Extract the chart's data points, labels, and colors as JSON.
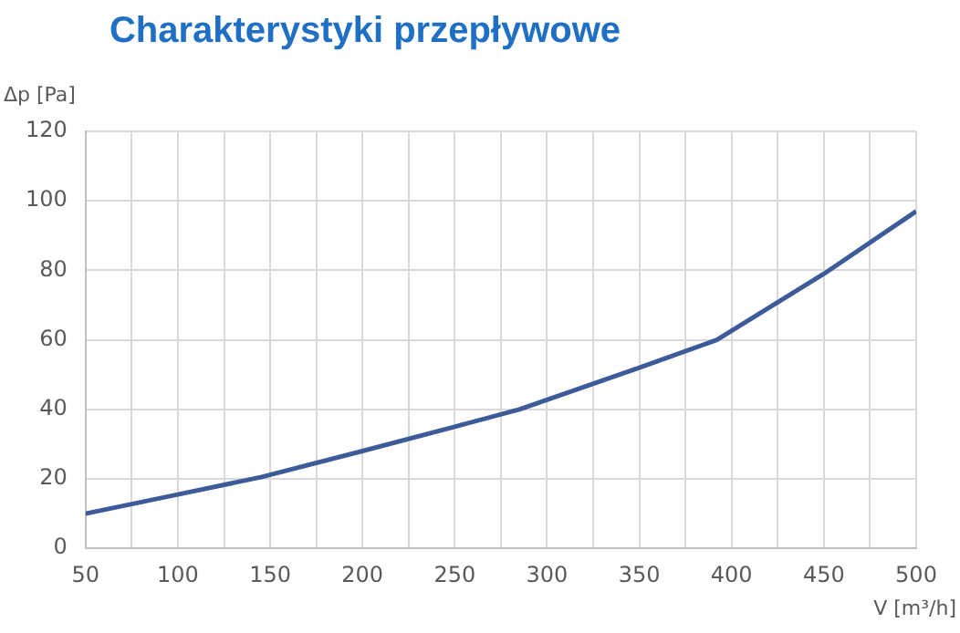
{
  "chart_data": {
    "type": "line",
    "title": "Charakterystyki przepływowe",
    "xlabel": "V [m³/h]",
    "ylabel": "Δp [Pa]",
    "x": [
      50,
      100,
      145,
      200,
      250,
      285,
      350,
      392,
      450,
      500
    ],
    "series": [
      {
        "color": "#3d5a99",
        "values": [
          10,
          15.5,
          20.5,
          28,
          35,
          40,
          52,
          60,
          79,
          97
        ]
      }
    ],
    "xlim": [
      50,
      500
    ],
    "xticks": [
      50,
      {
        "value": 75,
        "label": null
      },
      100,
      {
        "value": 125,
        "label": null
      },
      150,
      {
        "value": 175,
        "label": null
      },
      200,
      {
        "value": 225,
        "label": null
      },
      250,
      {
        "value": 275,
        "label": null
      },
      300,
      {
        "value": 325,
        "label": null
      },
      350,
      {
        "value": 375,
        "label": null
      },
      400,
      {
        "value": 425,
        "label": null
      },
      450,
      {
        "value": 475,
        "label": null
      },
      500
    ],
    "ylim": [
      0,
      120
    ],
    "yticks": [
      0,
      20,
      40,
      60,
      80,
      100,
      120
    ],
    "grid": true,
    "legend": false,
    "marker": "none",
    "line_style": "solid"
  }
}
